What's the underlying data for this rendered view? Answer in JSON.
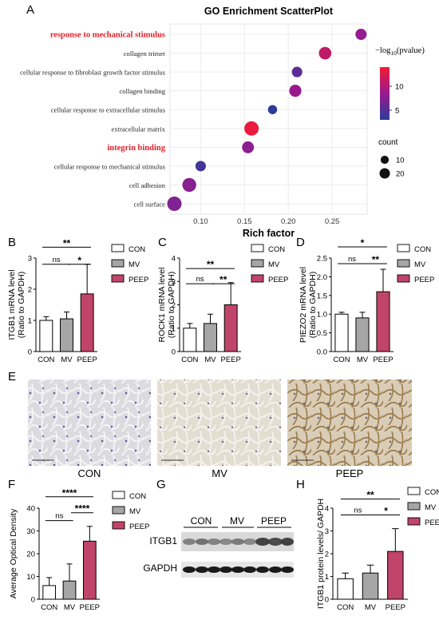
{
  "panels": {
    "A": "A",
    "B": "B",
    "C": "C",
    "D": "D",
    "E": "E",
    "F": "F",
    "G": "G",
    "H": "H"
  },
  "chart_data": [
    {
      "panel": "A",
      "type": "scatter",
      "title": "GO Enrichment ScatterPlot",
      "xlabel": "Rich factor",
      "ylabel": "",
      "xlim": [
        0.065,
        0.29
      ],
      "xticks": [
        "0.10",
        "0.15",
        "0.20",
        "0.25"
      ],
      "xtick_values": [
        0.1,
        0.15,
        0.2,
        0.25
      ],
      "highlight_color": "#e0202a",
      "terms": [
        {
          "label": "response to mechanical stimulus",
          "rich": 0.283,
          "count": 11,
          "logp": 8.2,
          "highlight": true
        },
        {
          "label": "collagen trimer",
          "rich": 0.242,
          "count": 15,
          "logp": 10.9,
          "highlight": false
        },
        {
          "label": "cellular response to fibroblast growth factor stimulus",
          "rich": 0.21,
          "count": 9,
          "logp": 5.4,
          "highlight": false
        },
        {
          "label": "collagen binding",
          "rich": 0.208,
          "count": 14,
          "logp": 8.5,
          "highlight": false
        },
        {
          "label": "cellular response to extracellular stimulus",
          "rich": 0.182,
          "count": 6,
          "logp": 3.2,
          "highlight": false
        },
        {
          "label": "extracellular matrix",
          "rich": 0.158,
          "count": 22,
          "logp": 13.5,
          "highlight": false
        },
        {
          "label": "integrin binding",
          "rich": 0.154,
          "count": 13,
          "logp": 7.8,
          "highlight": true
        },
        {
          "label": "cellular response to mechanical stimulus",
          "rich": 0.1,
          "count": 9,
          "logp": 4.2,
          "highlight": false
        },
        {
          "label": "cell adhesion",
          "rich": 0.087,
          "count": 20,
          "logp": 7.6,
          "highlight": false
        },
        {
          "label": "cell surface",
          "rich": 0.07,
          "count": 22,
          "logp": 7.2,
          "highlight": false
        }
      ],
      "colorbar": {
        "title_prefix": "−log",
        "title_sub": "10",
        "title_suffix": "(pvalue)",
        "ticks": [
          "10",
          "5"
        ],
        "tick_values": [
          10,
          5
        ],
        "range": [
          3,
          14
        ],
        "low_color": "#2b3c9a",
        "mid_color": "#9a1a8e",
        "high_color": "#f21b35"
      },
      "size_legend": {
        "title": "count",
        "items": [
          {
            "label": "10",
            "value": 10
          },
          {
            "label": "20",
            "value": 20
          }
        ]
      }
    },
    {
      "panel": "B",
      "type": "bar",
      "ylabel_line1": "ITGB1 mRNA level",
      "ylabel_line2": "(Ratio to GAPDH)",
      "categories": [
        "CON",
        "MV",
        "PEEP"
      ],
      "values": [
        1.0,
        1.05,
        1.85
      ],
      "errors": [
        0.12,
        0.22,
        0.95
      ],
      "ylim": [
        0,
        3
      ],
      "yticks": [
        "0",
        "1",
        "2",
        "3"
      ],
      "ytick_values": [
        0,
        1,
        2,
        3
      ],
      "sig": [
        {
          "from": 0,
          "to": 2,
          "label": "**",
          "y": 3.35
        },
        {
          "from": 0,
          "to": 1,
          "label": "ns",
          "y": 2.8
        },
        {
          "from": 1,
          "to": 2,
          "label": "*",
          "y": 2.8
        }
      ]
    },
    {
      "panel": "C",
      "type": "bar",
      "ylabel_line1": "ROCK1 mRNA level",
      "ylabel_line2": "(Ratio to GAPDH)",
      "categories": [
        "CON",
        "MV",
        "PEEP"
      ],
      "values": [
        1.0,
        1.2,
        2.0
      ],
      "errors": [
        0.2,
        0.4,
        0.95
      ],
      "ylim": [
        0,
        4
      ],
      "yticks": [
        "0",
        "1",
        "2",
        "3",
        "4"
      ],
      "ytick_values": [
        0,
        1,
        2,
        3,
        4
      ],
      "sig": [
        {
          "from": 0,
          "to": 2,
          "label": "**",
          "y": 3.55
        },
        {
          "from": 0,
          "to": 1,
          "label": "ns",
          "y": 2.9
        },
        {
          "from": 1,
          "to": 2,
          "label": "**",
          "y": 2.9
        }
      ]
    },
    {
      "panel": "D",
      "type": "bar",
      "ylabel_line1": "PIEZO2 mRNA level",
      "ylabel_line2": "(Ratio to GAPDH)",
      "categories": [
        "CON",
        "MV",
        "PEEP"
      ],
      "values": [
        1.0,
        0.9,
        1.6
      ],
      "errors": [
        0.05,
        0.15,
        0.6
      ],
      "ylim": [
        0,
        2.5
      ],
      "yticks": [
        "0.0",
        "0.5",
        "1.0",
        "1.5",
        "2.0",
        "2.5"
      ],
      "ytick_values": [
        0,
        0.5,
        1.0,
        1.5,
        2.0,
        2.5
      ],
      "sig": [
        {
          "from": 0,
          "to": 2,
          "label": "*",
          "y": 2.8
        },
        {
          "from": 0,
          "to": 1,
          "label": "ns",
          "y": 2.35
        },
        {
          "from": 1,
          "to": 2,
          "label": "**",
          "y": 2.35
        }
      ]
    },
    {
      "panel": "F",
      "type": "bar",
      "ylabel_line1": "Average Optical Density",
      "ylabel_line2": "",
      "categories": [
        "CON",
        "MV",
        "PEEP"
      ],
      "values": [
        6.0,
        8.0,
        25.5
      ],
      "errors": [
        3.5,
        7.5,
        6.5
      ],
      "ylim": [
        0,
        40
      ],
      "yticks": [
        "0",
        "10",
        "20",
        "30",
        "40"
      ],
      "ytick_values": [
        0,
        10,
        20,
        30,
        40
      ],
      "sig": [
        {
          "from": 0,
          "to": 2,
          "label": "****",
          "y": 45
        },
        {
          "from": 0,
          "to": 1,
          "label": "ns",
          "y": 34.5
        },
        {
          "from": 1,
          "to": 2,
          "label": "****",
          "y": 38
        }
      ]
    },
    {
      "panel": "H",
      "type": "bar",
      "ylabel_line1": "ITGB1 protein levels/ GAPDH",
      "ylabel_line2": "",
      "categories": [
        "CON",
        "MV",
        "PEEP"
      ],
      "values": [
        0.9,
        1.15,
        2.1
      ],
      "errors": [
        0.25,
        0.35,
        1.0
      ],
      "ylim": [
        0,
        4
      ],
      "yticks": [
        "0",
        "1",
        "2",
        "3",
        "4"
      ],
      "ytick_values": [
        0,
        1,
        2,
        3,
        4
      ],
      "sig": [
        {
          "from": 0,
          "to": 2,
          "label": "**",
          "y": 4.4
        },
        {
          "from": 0,
          "to": 1,
          "label": "ns",
          "y": 3.7
        },
        {
          "from": 1,
          "to": 2,
          "label": "*",
          "y": 3.7
        }
      ]
    }
  ],
  "legend": [
    "CON",
    "MV",
    "PEEP"
  ],
  "bar_colors": {
    "CON": "#ffffff",
    "MV": "#a6a6a6",
    "PEEP": "#c0446b"
  },
  "histology": {
    "labels": [
      "CON",
      "MV",
      "PEEP"
    ]
  },
  "western": {
    "groups": [
      "CON",
      "MV",
      "PEEP"
    ],
    "rows": [
      "ITGB1",
      "GAPDH"
    ]
  }
}
